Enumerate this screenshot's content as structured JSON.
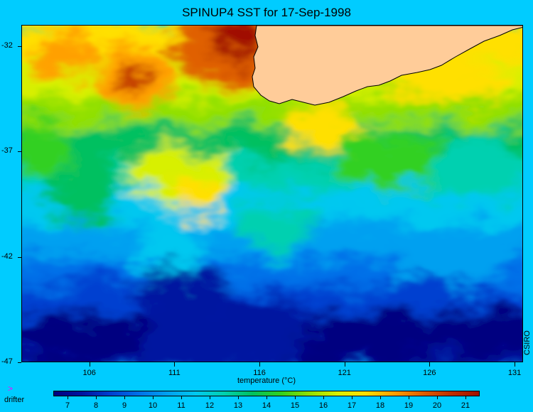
{
  "title": "SPINUP4 SST for 17-Sep-1998",
  "credit": "CSIRO",
  "map": {
    "lon_range": [
      102,
      131.5
    ],
    "lat_range": [
      -47,
      -31.0
    ],
    "lon_ticks": [
      106,
      111,
      116,
      121,
      126,
      131
    ],
    "lat_ticks": [
      -32,
      -37,
      -42,
      -47
    ],
    "land_color": "#ffcc99",
    "background_color": "#00ccff"
  },
  "colorbar": {
    "title": "temperature (°C)",
    "min": 6.5,
    "max": 21.5,
    "ticks": [
      "7",
      "8",
      "9",
      "10",
      "11",
      "12",
      "13",
      "14",
      "15",
      "16",
      "17",
      "18",
      "19",
      "20",
      "21"
    ],
    "colors": [
      "#000080",
      "#0014a0",
      "#0040d0",
      "#0070e8",
      "#00a0f0",
      "#00c8f0",
      "#00d0b0",
      "#00c060",
      "#30d020",
      "#90e000",
      "#d8f000",
      "#ffe000",
      "#ffa000",
      "#e06000",
      "#c03000",
      "#a01000"
    ]
  },
  "legend": {
    "marker": ">",
    "label": "drifter"
  }
}
